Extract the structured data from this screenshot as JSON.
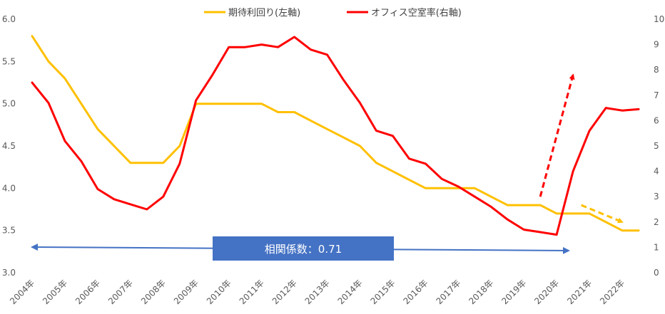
{
  "chart_data": {
    "type": "line",
    "categories": [
      "2004年",
      "2005年",
      "2006年",
      "2007年",
      "2008年",
      "2009年",
      "2010年",
      "2011年",
      "2012年",
      "2013年",
      "2014年",
      "2015年",
      "2016年",
      "2017年",
      "2018年",
      "2019年",
      "2020年",
      "2021年",
      "2022年"
    ],
    "x": [
      "2004",
      "2004.5",
      "2005",
      "2005.5",
      "2006",
      "2006.5",
      "2007",
      "2007.5",
      "2008",
      "2008.5",
      "2009",
      "2009.5",
      "2010",
      "2010.5",
      "2011",
      "2011.5",
      "2012",
      "2012.5",
      "2013",
      "2013.5",
      "2014",
      "2014.5",
      "2015",
      "2015.5",
      "2016",
      "2016.5",
      "2017",
      "2017.5",
      "2018",
      "2018.5",
      "2019",
      "2019.5",
      "2020",
      "2020.5",
      "2021",
      "2021.5",
      "2022",
      "2022.5"
    ],
    "series": [
      {
        "name": "期待利回り(左軸)",
        "axis": "left",
        "color": "#FFC000",
        "values": [
          5.8,
          5.5,
          5.3,
          5.0,
          4.7,
          4.5,
          4.3,
          4.3,
          4.3,
          4.5,
          5.0,
          5.0,
          5.0,
          5.0,
          5.0,
          4.9,
          4.9,
          4.8,
          4.7,
          4.6,
          4.5,
          4.3,
          4.2,
          4.1,
          4.0,
          4.0,
          4.0,
          4.0,
          3.9,
          3.8,
          3.8,
          3.8,
          3.7,
          3.7,
          3.7,
          3.6,
          3.5,
          3.5
        ]
      },
      {
        "name": "オフィス空室率(右軸)",
        "axis": "right",
        "color": "#FF0000",
        "values": [
          7.5,
          6.7,
          5.2,
          4.4,
          3.3,
          2.9,
          2.7,
          2.5,
          3.0,
          4.3,
          6.8,
          7.8,
          8.9,
          8.9,
          9.0,
          8.9,
          9.3,
          8.8,
          8.6,
          7.6,
          6.7,
          5.6,
          5.4,
          4.5,
          4.3,
          3.7,
          3.4,
          3.0,
          2.6,
          2.1,
          1.7,
          1.6,
          1.5,
          4.0,
          5.6,
          6.5,
          6.4,
          6.45
        ]
      }
    ],
    "yleft": {
      "ylim": [
        3.0,
        6.0
      ],
      "ticks": [
        "3.0",
        "3.5",
        "4.0",
        "4.5",
        "5.0",
        "5.5",
        "6.0"
      ]
    },
    "yright": {
      "ylim": [
        0,
        10
      ],
      "ticks": [
        "0",
        "1",
        "2",
        "3",
        "4",
        "5",
        "6",
        "7",
        "8",
        "9",
        "10"
      ]
    },
    "legend": {
      "position": "top",
      "items": [
        "期待利回り(左軸)",
        "オフィス空室率(右軸)"
      ]
    },
    "annotations": {
      "correlation_label": "相関係数：0.71",
      "correlation_box_color": "#4472C4",
      "red_dashed_arrow": {
        "from": [
          "2019.5",
          3.0
        ],
        "to": [
          "2020.5",
          7.8
        ],
        "axis": "right"
      },
      "yellow_dashed_arrow": {
        "from": [
          "2020.75",
          3.8
        ],
        "to": [
          "2022",
          3.6
        ],
        "axis": "left"
      }
    },
    "grid": false
  }
}
